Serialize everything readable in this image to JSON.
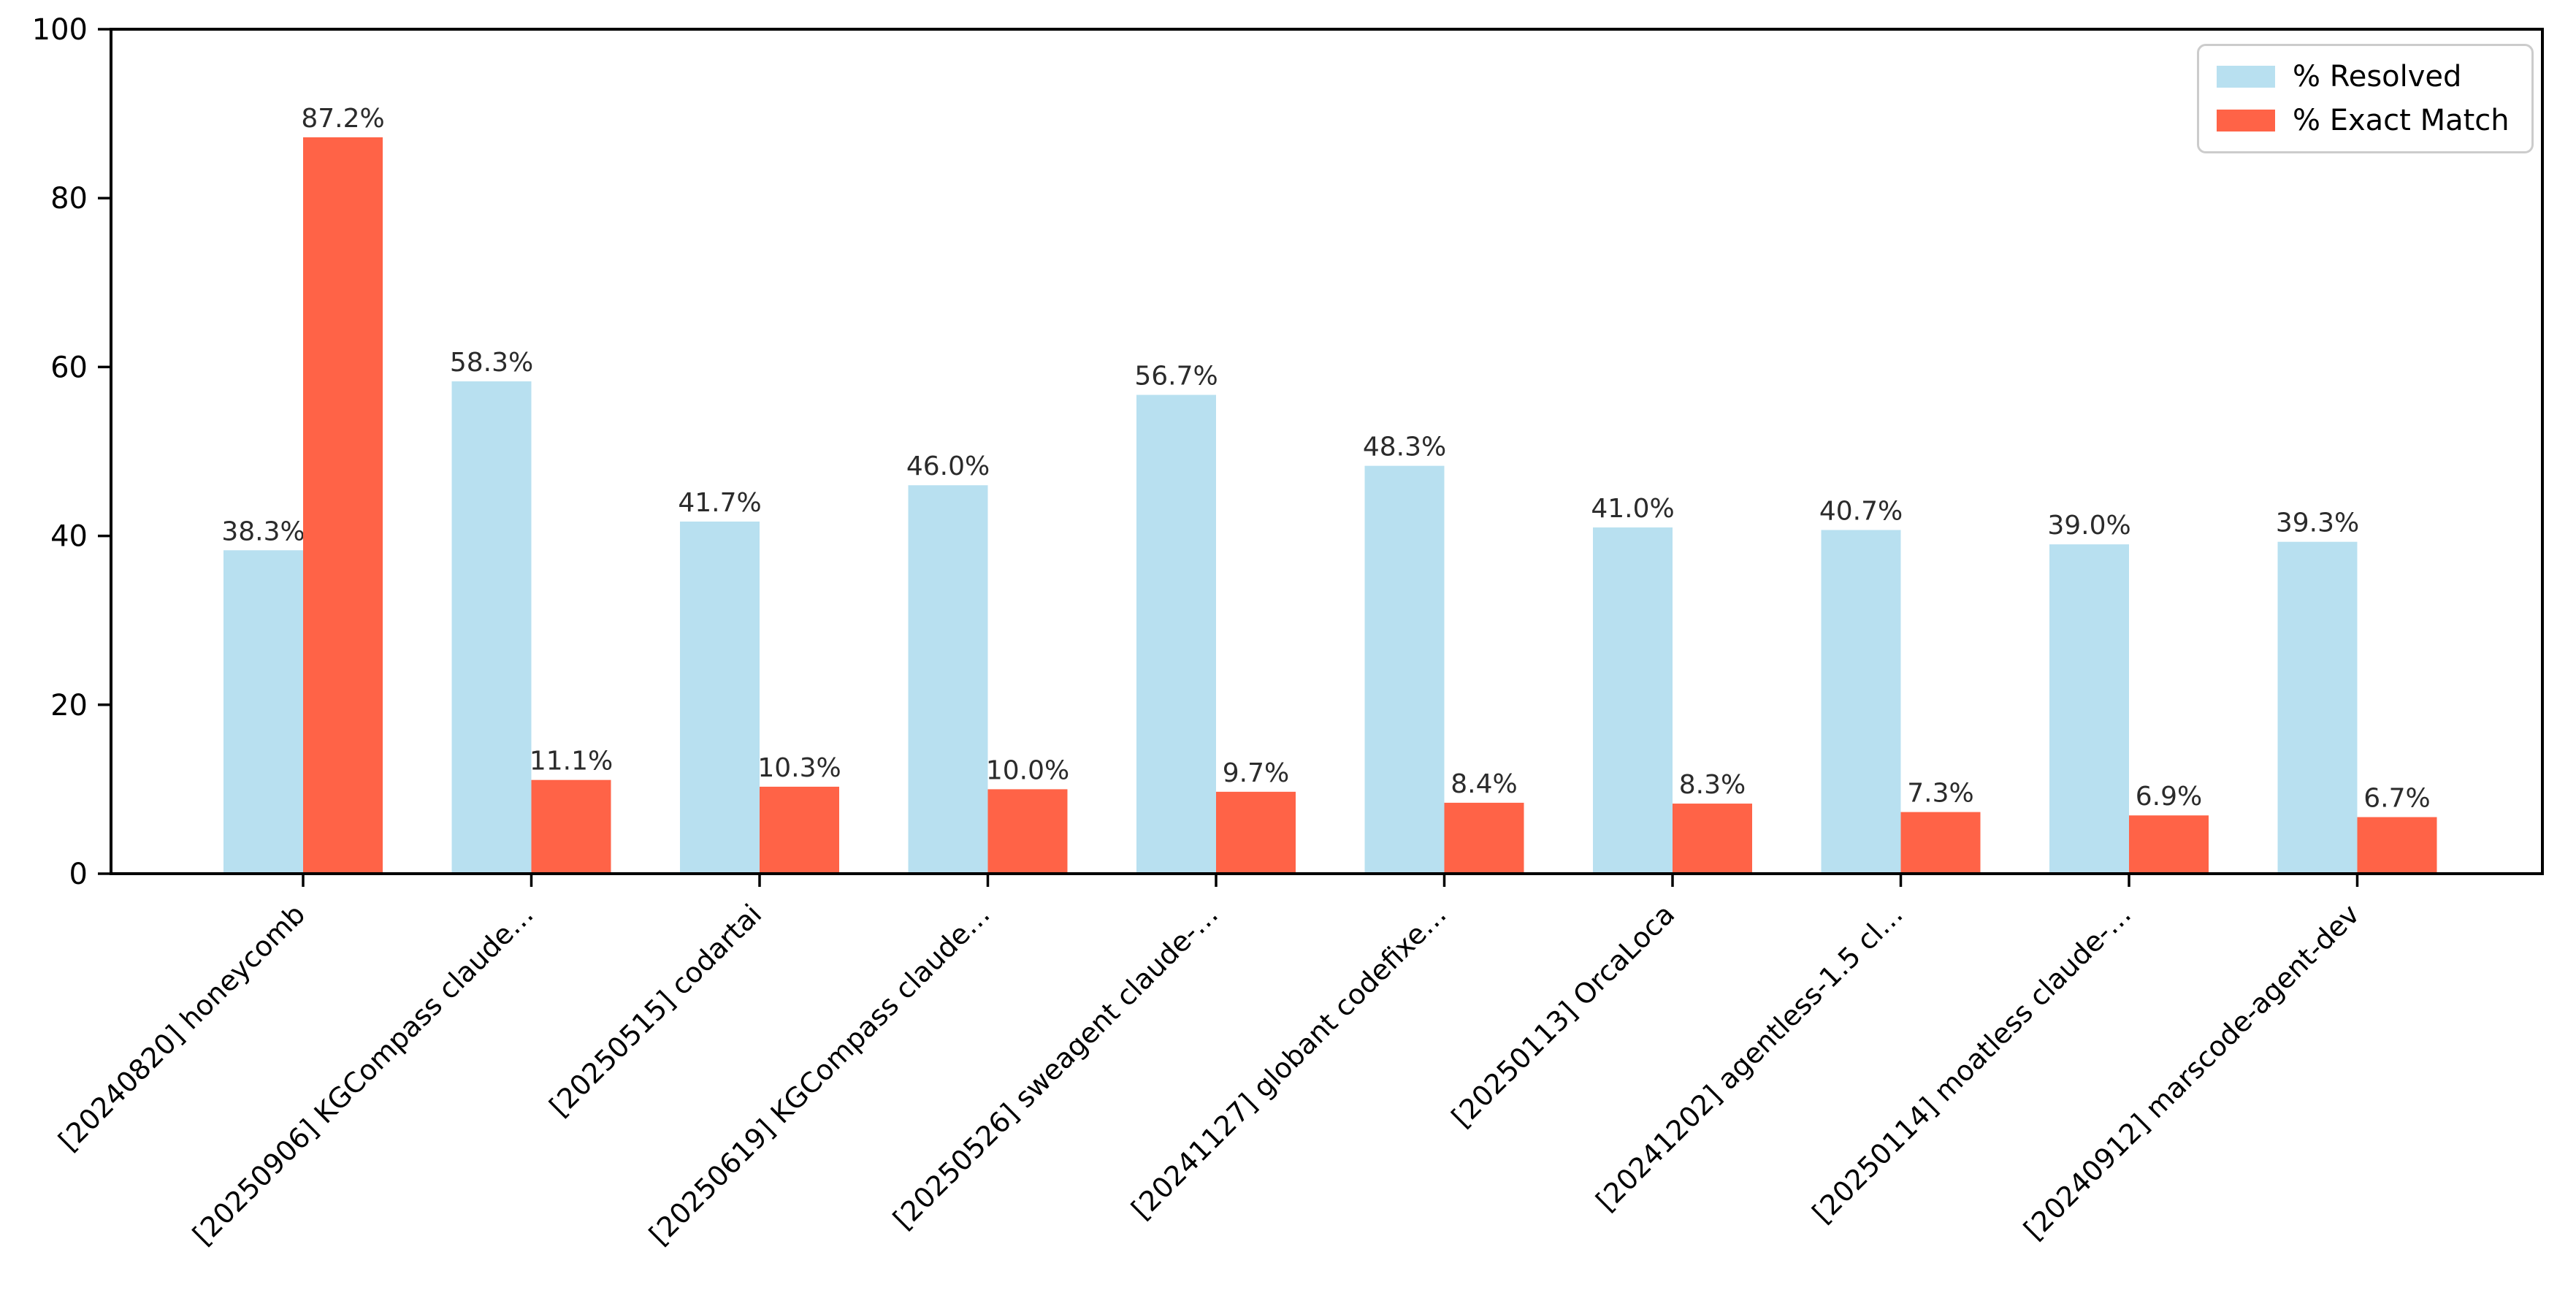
{
  "figure": {
    "background": "#ffffff"
  },
  "chart_data": {
    "type": "bar",
    "title": "",
    "xlabel": "",
    "ylabel": "",
    "categories": [
      "[20240820] honeycomb",
      "[20250906] KGCompass claude…",
      "[20250515] codartai",
      "[20250619] KGCompass claude…",
      "[20250526] sweagent claude-…",
      "[20241127] globant codefixe…",
      "[20250113] OrcaLoca",
      "[20241202] agentless-1.5 cl…",
      "[20250114] moatless claude-…",
      "[20240912] marscode-agent-dev"
    ],
    "series": [
      {
        "name": "% Resolved",
        "color": "#B8E0F0",
        "values": [
          38.3,
          58.3,
          41.7,
          46.0,
          56.7,
          48.3,
          41.0,
          40.7,
          39.0,
          39.3
        ],
        "labels": [
          "38.3%",
          "58.3%",
          "41.7%",
          "46.0%",
          "56.7%",
          "48.3%",
          "41.0%",
          "40.7%",
          "39.0%",
          "39.3%"
        ]
      },
      {
        "name": "% Exact Match",
        "color": "#FF6347",
        "values": [
          87.2,
          11.1,
          10.3,
          10.0,
          9.7,
          8.4,
          8.3,
          7.3,
          6.9,
          6.7
        ],
        "labels": [
          "87.2%",
          "11.1%",
          "10.3%",
          "10.0%",
          "9.7%",
          "8.4%",
          "8.3%",
          "7.3%",
          "6.9%",
          "6.7%"
        ]
      }
    ],
    "ylim": [
      0,
      100
    ],
    "yticks": [
      0,
      20,
      40,
      60,
      80,
      100
    ],
    "ytick_labels": [
      "0",
      "20",
      "40",
      "60",
      "80",
      "100"
    ],
    "grid": false,
    "legend_position": "upper right",
    "bar_label_color": "#2b2b2b",
    "axis_color": "#000000",
    "x_tick_label_rotation_deg": 45
  }
}
